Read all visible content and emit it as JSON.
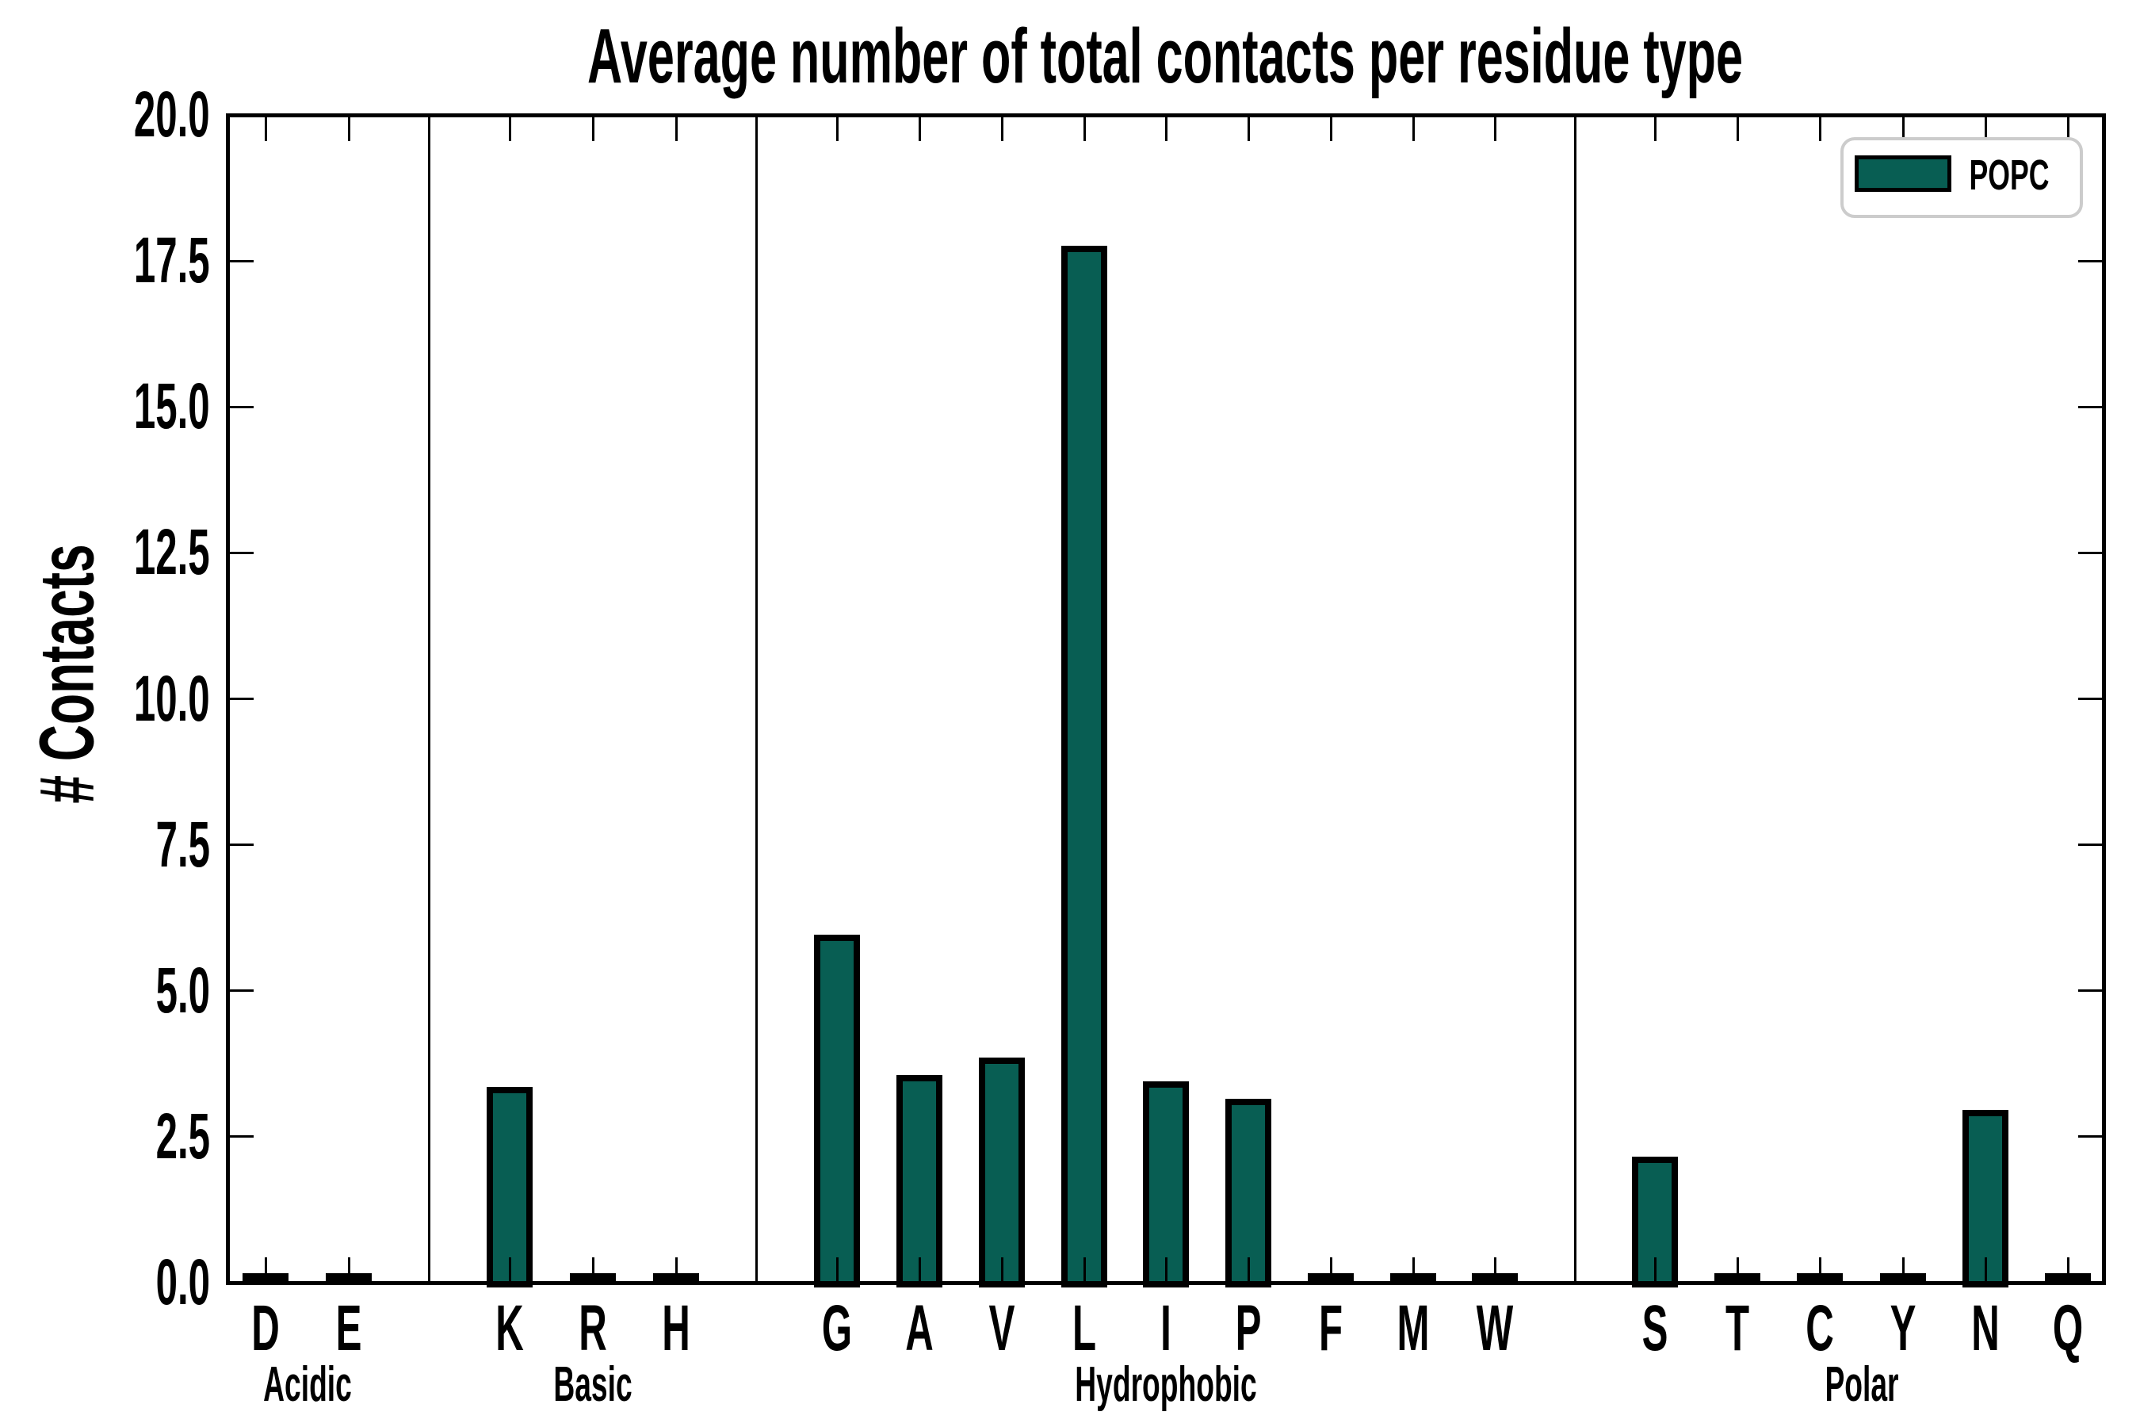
{
  "figure": {
    "title": "Average number of total contacts per residue type"
  },
  "axis": {
    "ylabel": "# Contacts"
  },
  "legend": {
    "label": "POPC",
    "position": "upper right"
  },
  "colors": {
    "bar_fill": "#085e53",
    "bar_edge": "#000000",
    "legend_border": "#cccccc",
    "text": "#000000",
    "background": "#ffffff"
  },
  "chart_data": {
    "type": "bar",
    "title": "Average number of total contacts per residue type",
    "xlabel": "",
    "ylabel": "# Contacts",
    "ylim": [
      0.0,
      20.0
    ],
    "yticks": [
      0.0,
      2.5,
      5.0,
      7.5,
      10.0,
      12.5,
      15.0,
      17.5,
      20.0
    ],
    "grid": false,
    "legend_position": "upper right",
    "series_name": "POPC",
    "categories": [
      "D",
      "E",
      "K",
      "R",
      "H",
      "G",
      "A",
      "V",
      "L",
      "I",
      "P",
      "F",
      "M",
      "W",
      "S",
      "T",
      "C",
      "Y",
      "N",
      "Q"
    ],
    "values": [
      0.05,
      0.05,
      3.3,
      0.05,
      0.05,
      5.9,
      3.5,
      3.8,
      17.7,
      3.4,
      3.1,
      0.05,
      0.05,
      0.05,
      2.1,
      0.05,
      0.05,
      0.05,
      2.9,
      0.05
    ],
    "groups": [
      {
        "label": "Acidic",
        "categories": [
          "D",
          "E"
        ]
      },
      {
        "label": "Basic",
        "categories": [
          "K",
          "R",
          "H"
        ]
      },
      {
        "label": "Hydrophobic",
        "categories": [
          "G",
          "A",
          "V",
          "L",
          "I",
          "P",
          "F",
          "M",
          "W"
        ]
      },
      {
        "label": "Polar",
        "categories": [
          "S",
          "T",
          "C",
          "Y",
          "N",
          "Q"
        ]
      }
    ]
  }
}
